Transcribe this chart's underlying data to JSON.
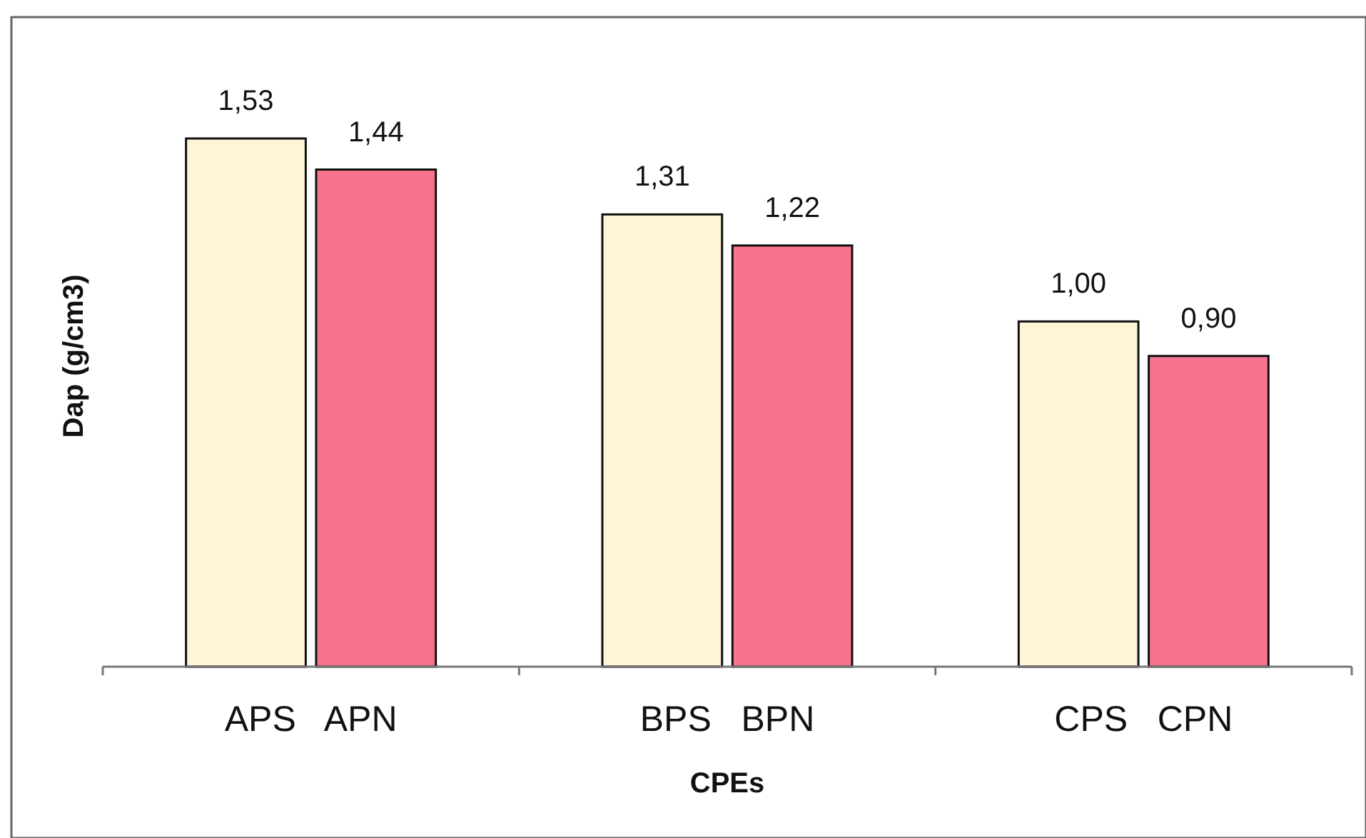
{
  "chart_data": {
    "type": "bar",
    "xlabel": "CPEs",
    "ylabel": "Dap (g/cm3)",
    "categories": [
      "APS   APN",
      "BPS   BPN",
      "CPS   CPN"
    ],
    "series": [
      {
        "color": "#fdf5d6",
        "values": [
          1.53,
          1.31,
          1.0
        ],
        "value_labels": [
          "1,53",
          "1,31",
          "1,00"
        ]
      },
      {
        "color": "#f7748e",
        "values": [
          1.44,
          1.22,
          0.9
        ],
        "value_labels": [
          "1,44",
          "1,22",
          "0,90"
        ]
      }
    ],
    "tick_labels": "x"
  }
}
